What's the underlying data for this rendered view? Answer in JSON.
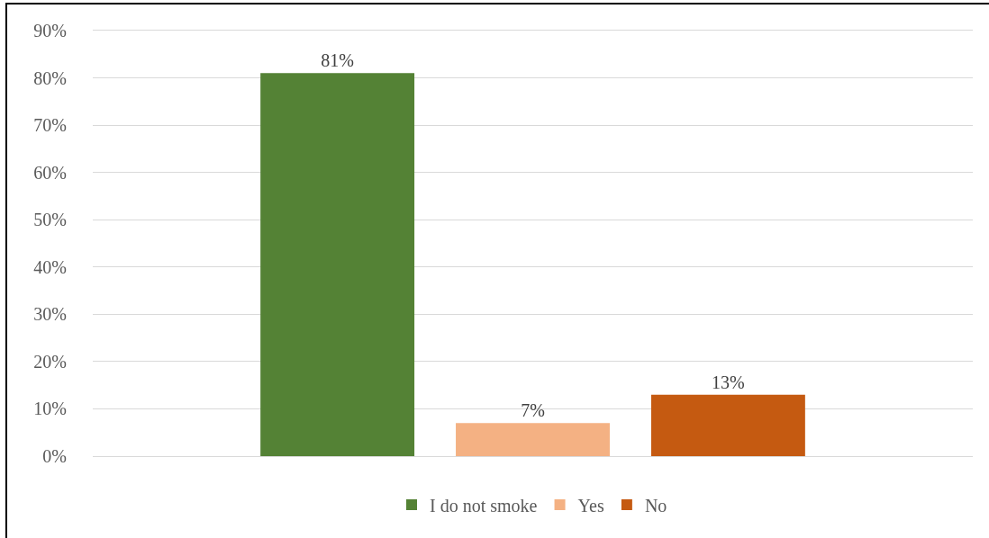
{
  "chart_data": {
    "type": "bar",
    "categories": [
      null
    ],
    "series": [
      {
        "name": "I do not smoke",
        "color": "#548235",
        "values": [
          81
        ],
        "value_labels": [
          "81%"
        ]
      },
      {
        "name": "Yes",
        "color": "#f4b183",
        "values": [
          7
        ],
        "value_labels": [
          "7%"
        ]
      },
      {
        "name": "No",
        "color": "#c55a11",
        "values": [
          13
        ],
        "value_labels": [
          "13%"
        ]
      }
    ],
    "ylim": [
      0,
      90
    ],
    "yticks": [
      {
        "value": 0,
        "label": "0%"
      },
      {
        "value": 10,
        "label": "10%"
      },
      {
        "value": 20,
        "label": "20%"
      },
      {
        "value": 30,
        "label": "30%"
      },
      {
        "value": 40,
        "label": "40%"
      },
      {
        "value": 50,
        "label": "50%"
      },
      {
        "value": 60,
        "label": "60%"
      },
      {
        "value": 70,
        "label": "70%"
      },
      {
        "value": 80,
        "label": "80%"
      },
      {
        "value": 90,
        "label": "90%"
      }
    ],
    "grid": "y",
    "legend": "bottom"
  }
}
